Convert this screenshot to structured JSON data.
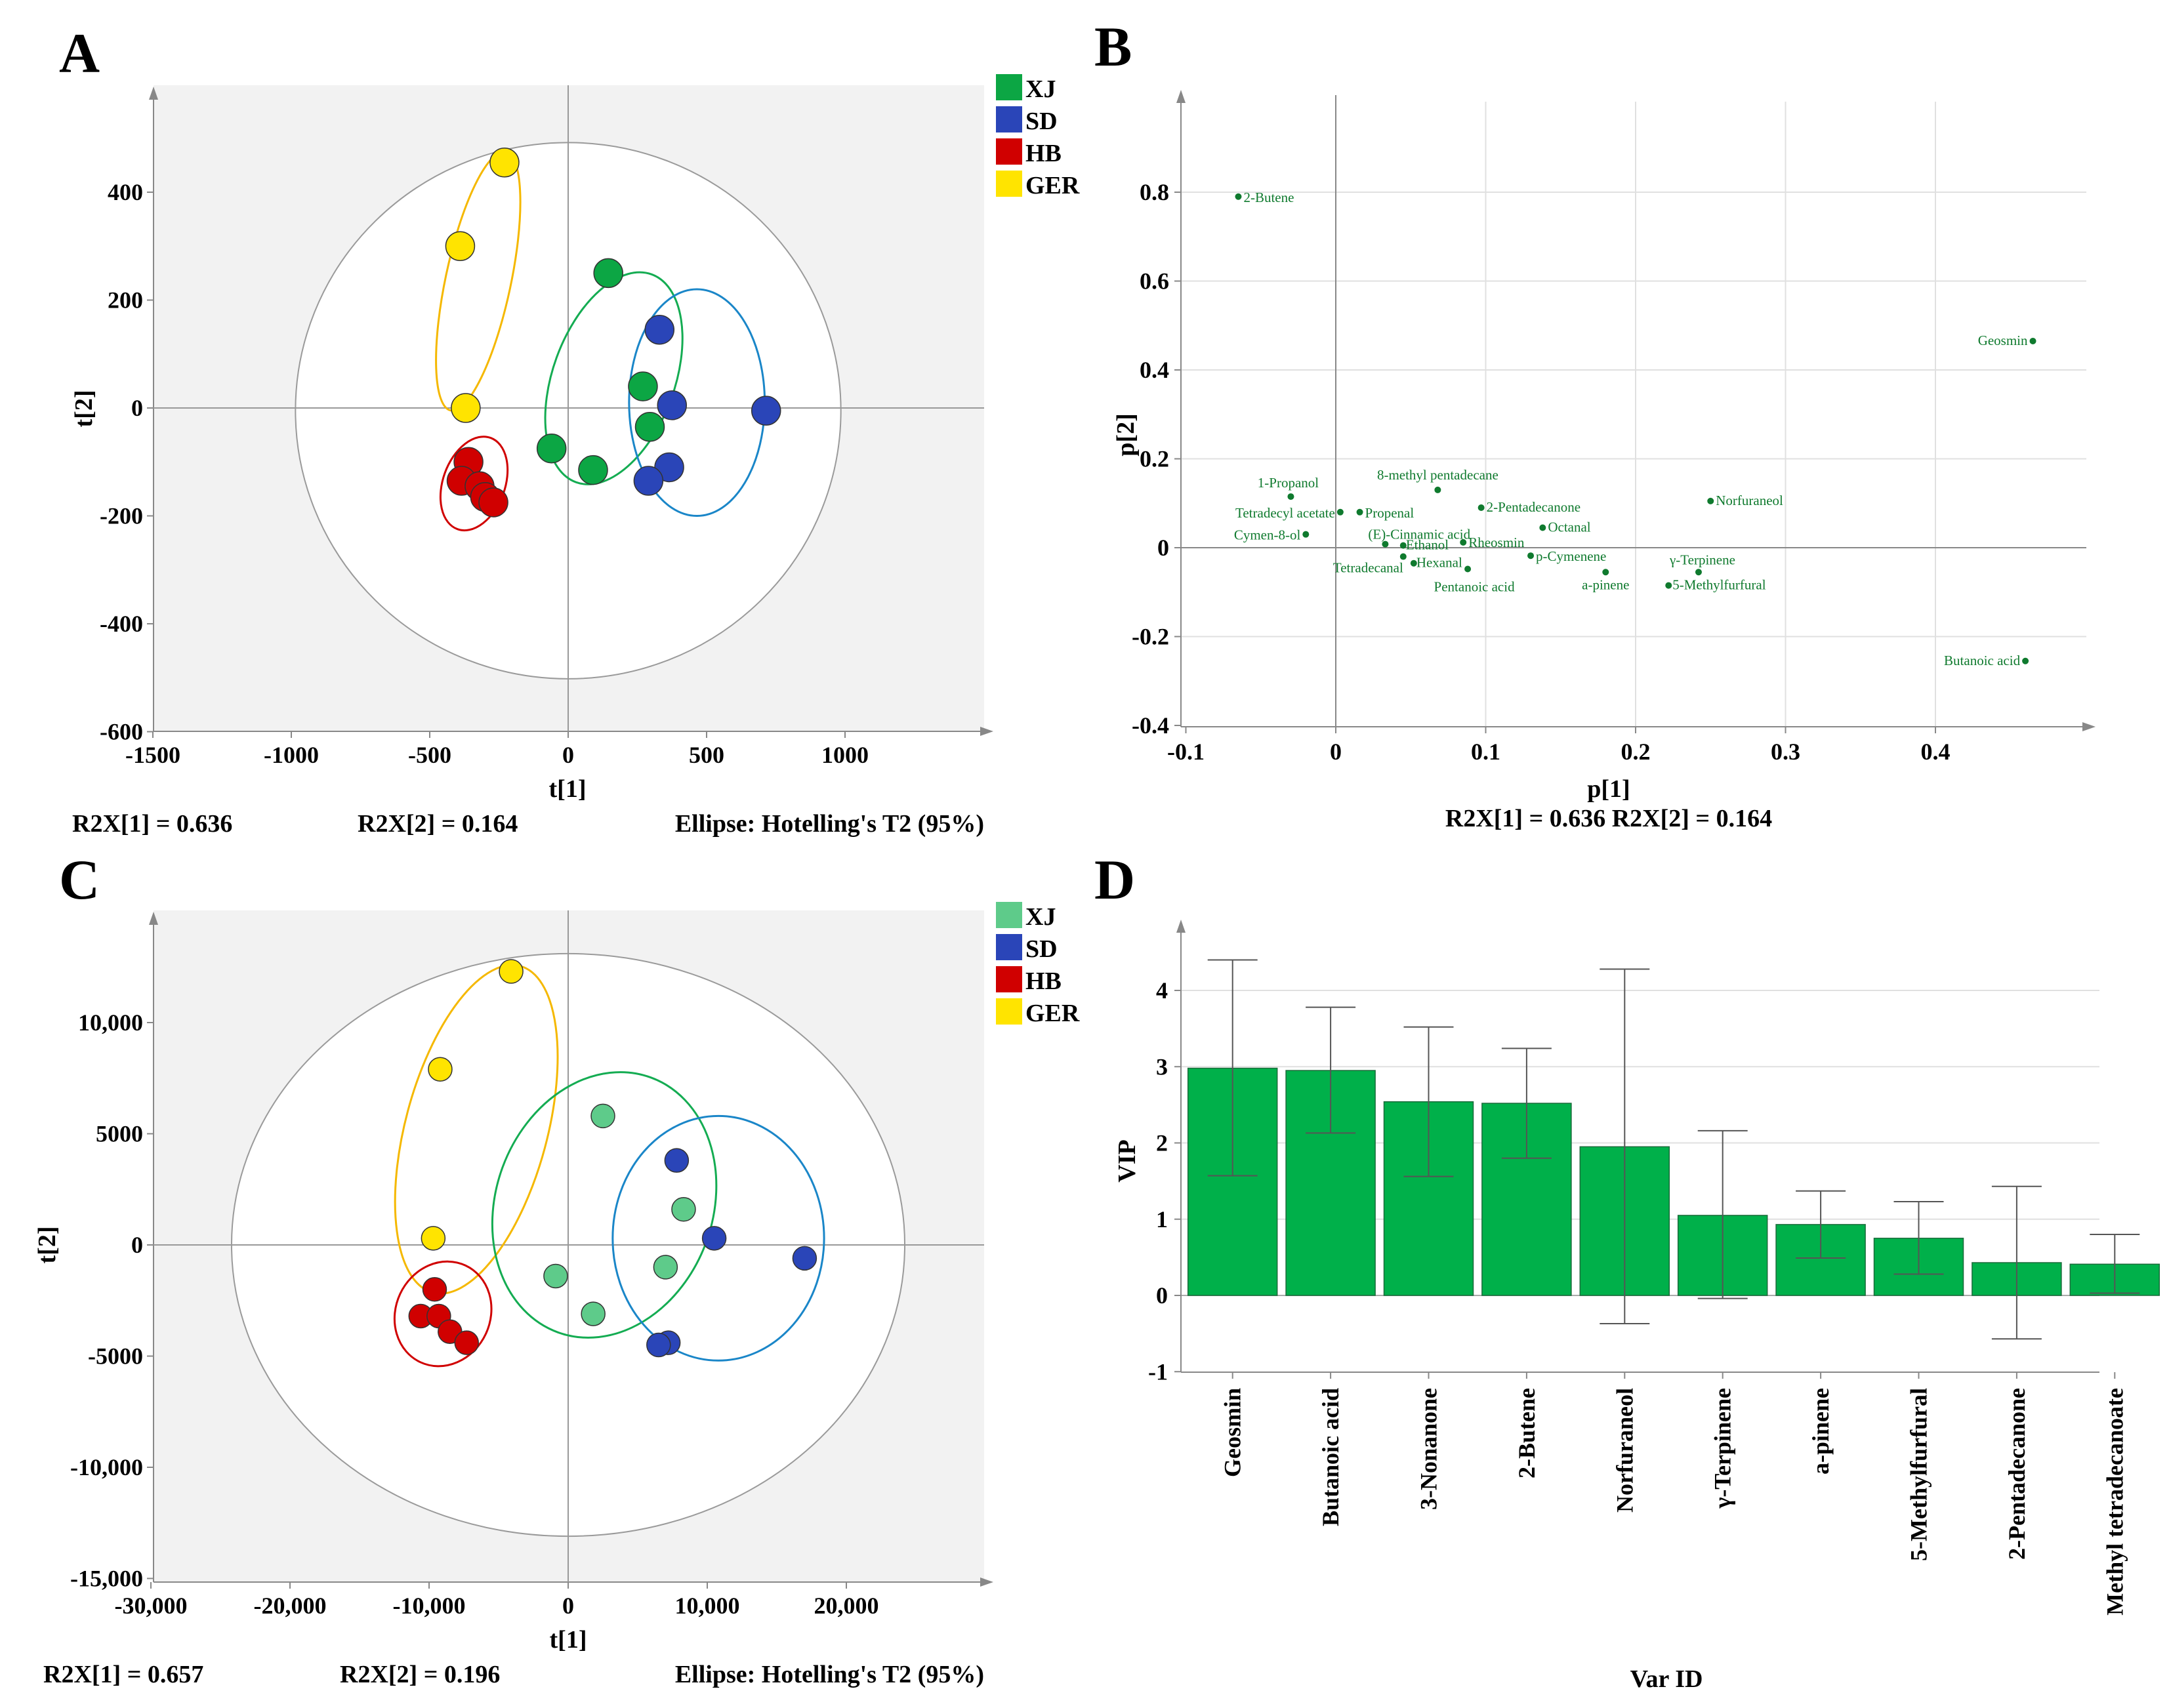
{
  "figure": {
    "letters": [
      "A",
      "B",
      "C",
      "D"
    ]
  },
  "colors": {
    "XJ": "#0ca644",
    "XJ_light": "#5ecb8a",
    "SD": "#2a45b8",
    "HB": "#d00000",
    "GER": "#ffe400",
    "XJ_ellipse": "#14ac52",
    "SD_ellipse": "#1a86c8",
    "HB_ellipse": "#d00000",
    "GER_ellipse": "#f5b800",
    "plot_bg": "#f2f2f2",
    "bar": "#00b04a",
    "loading": "#0f7a2e",
    "grid": "#e0e0e0"
  },
  "panels": {
    "A": {
      "letter": "A",
      "xlabel": "t[1]",
      "ylabel": "t[2]",
      "footer": {
        "left": "R2X[1] = 0.636",
        "mid": "R2X[2] = 0.164",
        "right": "Ellipse: Hotelling's T2 (95%)"
      },
      "legend": [
        {
          "label": "XJ",
          "color": "#0ca644"
        },
        {
          "label": "SD",
          "color": "#2a45b8"
        },
        {
          "label": "HB",
          "color": "#d00000"
        },
        {
          "label": "GER",
          "color": "#ffe400"
        }
      ],
      "xticks": [
        "-1500",
        "-1000",
        "-500",
        "0",
        "500",
        "1000"
      ],
      "yticks": [
        "400",
        "200",
        "0",
        "-200",
        "-400",
        "-600"
      ]
    },
    "B": {
      "letter": "B",
      "xlabel": "p[1]",
      "ylabel": "p[2]",
      "footer": "R2X[1] = 0.636 R2X[2] = 0.164",
      "xticks": [
        "-0.1",
        "0",
        "0.1",
        "0.2",
        "0.3",
        "0.4"
      ],
      "yticks": [
        "0.8",
        "0.6",
        "0.4",
        "0.2",
        "0",
        "-0.2",
        "-0.4"
      ]
    },
    "C": {
      "letter": "C",
      "xlabel": "t[1]",
      "ylabel": "t[2]",
      "footer": {
        "left": "R2X[1] = 0.657",
        "mid": "R2X[2] = 0.196",
        "right": "Ellipse: Hotelling's T2 (95%)"
      },
      "legend": [
        {
          "label": "XJ",
          "color": "#5ecb8a"
        },
        {
          "label": "SD",
          "color": "#2a45b8"
        },
        {
          "label": "HB",
          "color": "#d00000"
        },
        {
          "label": "GER",
          "color": "#ffe400"
        }
      ],
      "xticks": [
        "-30,000",
        "-20,000",
        "-10,000",
        "0",
        "10,000",
        "20,000"
      ],
      "yticks": [
        "10,000",
        "5000",
        "0",
        "-5000",
        "-10,000",
        "-15,000"
      ]
    },
    "D": {
      "letter": "D",
      "xlabel": "Var ID",
      "ylabel": "VIP",
      "yticks": [
        "4",
        "3",
        "2",
        "1",
        "0",
        "-1"
      ]
    }
  },
  "chart_data": [
    {
      "panel": "A",
      "type": "scatter",
      "xlim": [
        -1500,
        1500
      ],
      "ylim": [
        -600,
        600
      ],
      "xlabel": "t[1]",
      "ylabel": "t[2]",
      "series": [
        {
          "name": "XJ",
          "color": "#0ca644",
          "points": [
            [
              145,
              250
            ],
            [
              270,
              40
            ],
            [
              295,
              -35
            ],
            [
              -60,
              -75
            ],
            [
              90,
              -115
            ]
          ]
        },
        {
          "name": "SD",
          "color": "#2a45b8",
          "points": [
            [
              330,
              145
            ],
            [
              375,
              5
            ],
            [
              715,
              -5
            ],
            [
              365,
              -110
            ],
            [
              290,
              -135
            ]
          ]
        },
        {
          "name": "HB",
          "color": "#d00000",
          "points": [
            [
              -360,
              -100
            ],
            [
              -385,
              -135
            ],
            [
              -320,
              -145
            ],
            [
              -300,
              -165
            ],
            [
              -270,
              -175
            ]
          ]
        },
        {
          "name": "GER",
          "color": "#ffe400",
          "points": [
            [
              -230,
              455
            ],
            [
              -390,
              300
            ],
            [
              -370,
              0
            ]
          ]
        }
      ],
      "group_ellipses": [
        {
          "group": "GER",
          "cx": -325,
          "cy": 235,
          "rx": 118,
          "ry": 245,
          "rot": 12
        },
        {
          "group": "XJ",
          "cx": 165,
          "cy": 55,
          "rx": 220,
          "ry": 205,
          "rot": 20
        },
        {
          "group": "SD",
          "cx": 465,
          "cy": 10,
          "rx": 245,
          "ry": 210,
          "rot": 0
        },
        {
          "group": "HB",
          "cx": -340,
          "cy": -140,
          "rx": 112,
          "ry": 90,
          "rot": 20
        }
      ],
      "hotelling": {
        "cx": 0,
        "cy": -5,
        "rx": 985,
        "ry": 497
      }
    },
    {
      "panel": "B",
      "type": "scatter",
      "xlim": [
        -0.1,
        0.5
      ],
      "ylim": [
        -0.4,
        1.0
      ],
      "xlabel": "p[1]",
      "ylabel": "p[2]",
      "points": [
        {
          "name": "2-Butene",
          "x": -0.065,
          "y": 0.79
        },
        {
          "name": "Geosmin",
          "x": 0.465,
          "y": 0.465
        },
        {
          "name": "1-Propanol",
          "x": -0.03,
          "y": 0.115
        },
        {
          "name": "8-methyl pentadecane",
          "x": 0.068,
          "y": 0.13
        },
        {
          "name": "Norfuraneol",
          "x": 0.25,
          "y": 0.105
        },
        {
          "name": "2-Pentadecanone",
          "x": 0.097,
          "y": 0.09
        },
        {
          "name": "Tetradecyl acetate",
          "x": 0.003,
          "y": 0.08
        },
        {
          "name": "Propenal",
          "x": 0.016,
          "y": 0.08
        },
        {
          "name": "Octanal",
          "x": 0.138,
          "y": 0.045
        },
        {
          "name": "Cymen-8-ol",
          "x": -0.02,
          "y": 0.03
        },
        {
          "name": "(E)-Cinnamic acid",
          "x": 0.033,
          "y": 0.008
        },
        {
          "name": "Ethanol",
          "x": 0.045,
          "y": 0.005
        },
        {
          "name": "Rheosmin",
          "x": 0.085,
          "y": 0.012
        },
        {
          "name": "p-Cymenene",
          "x": 0.13,
          "y": -0.018
        },
        {
          "name": "γ-Terpinene",
          "x": 0.242,
          "y": -0.055
        },
        {
          "name": "Tetradecanal",
          "x": 0.045,
          "y": -0.02
        },
        {
          "name": "Hexanal",
          "x": 0.052,
          "y": -0.035
        },
        {
          "name": "Pentanoic acid",
          "x": 0.088,
          "y": -0.048
        },
        {
          "name": "a-pinene",
          "x": 0.18,
          "y": -0.055
        },
        {
          "name": "5-Methylfurfural",
          "x": 0.222,
          "y": -0.085
        },
        {
          "name": "Butanoic acid",
          "x": 0.46,
          "y": -0.255
        }
      ]
    },
    {
      "panel": "C",
      "type": "scatter",
      "xlim": [
        -30000,
        30000
      ],
      "ylim": [
        -15000,
        15000
      ],
      "xlabel": "t[1]",
      "ylabel": "t[2]",
      "series": [
        {
          "name": "XJ",
          "color": "#5ecb8a",
          "points": [
            [
              2500,
              5800
            ],
            [
              8300,
              1600
            ],
            [
              7000,
              -1000
            ],
            [
              -900,
              -1400
            ],
            [
              1800,
              -3100
            ]
          ]
        },
        {
          "name": "SD",
          "color": "#2a45b8",
          "points": [
            [
              7800,
              3800
            ],
            [
              10500,
              300
            ],
            [
              17000,
              -600
            ],
            [
              7200,
              -4400
            ],
            [
              6500,
              -4500
            ]
          ]
        },
        {
          "name": "HB",
          "color": "#d00000",
          "points": [
            [
              -9600,
              -2000
            ],
            [
              -10600,
              -3200
            ],
            [
              -9300,
              -3200
            ],
            [
              -8500,
              -3900
            ],
            [
              -7300,
              -4400
            ]
          ]
        },
        {
          "name": "GER",
          "color": "#ffe400",
          "points": [
            [
              -4100,
              12300
            ],
            [
              -9200,
              7900
            ],
            [
              -9700,
              300
            ]
          ]
        }
      ],
      "group_ellipses": [
        {
          "group": "GER",
          "cx": -6600,
          "cy": 5200,
          "rx": 5100,
          "ry": 7600,
          "rot": 15
        },
        {
          "group": "XJ",
          "cx": 2600,
          "cy": 1800,
          "rx": 7800,
          "ry": 6100,
          "rot": 20
        },
        {
          "group": "SD",
          "cx": 10800,
          "cy": 300,
          "rx": 7600,
          "ry": 5500,
          "rot": 0
        },
        {
          "group": "HB",
          "cx": -9000,
          "cy": -3100,
          "rx": 3400,
          "ry": 2400,
          "rot": 25
        }
      ],
      "hotelling": {
        "cx": 0,
        "cy": 0,
        "rx": 24200,
        "ry": 13100
      }
    },
    {
      "panel": "D",
      "type": "bar",
      "xlabel": "Var ID",
      "ylabel": "VIP",
      "ylim": [
        -1,
        4.5
      ],
      "categories": [
        "Geosmin",
        "Butanoic acid",
        "3-Nonanone",
        "2-Butene",
        "Norfuraneol",
        "γ-Terpinene",
        "a-pinene",
        "5-Methylfurfural",
        "2-Pentadecanone",
        "Methyl tetradecanoate"
      ],
      "values": [
        2.98,
        2.95,
        2.54,
        2.52,
        1.95,
        1.05,
        0.93,
        0.75,
        0.43,
        0.41
      ],
      "error_low": [
        1.57,
        2.13,
        1.56,
        1.8,
        -0.37,
        -0.04,
        0.49,
        0.28,
        -0.57,
        0.03
      ],
      "error_high": [
        4.4,
        3.78,
        3.52,
        3.24,
        4.28,
        2.16,
        1.37,
        1.23,
        1.43,
        0.8
      ]
    }
  ]
}
